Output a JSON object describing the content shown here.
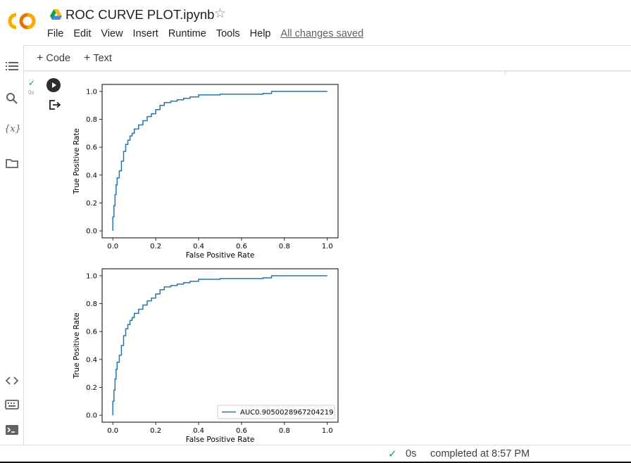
{
  "header": {
    "title": "ROC CURVE PLOT.ipynb",
    "menu": [
      "File",
      "Edit",
      "View",
      "Insert",
      "Runtime",
      "Tools",
      "Help"
    ],
    "save_status": "All changes saved",
    "logo_text": "CO"
  },
  "toolbar": {
    "code_label": "Code",
    "text_label": "Text"
  },
  "sidebar": {
    "icons": [
      "table-of-contents-icon",
      "search-icon",
      "variables-icon",
      "files-icon",
      "code-snippets-icon",
      "command-palette-icon",
      "terminal-icon"
    ],
    "variables_glyph": "{x}"
  },
  "cell": {
    "exec_time": "0s"
  },
  "status": {
    "duration": "0s",
    "message": "completed at 8:57 PM"
  },
  "colors": {
    "curve": "#1f77b4",
    "check": "#0f9d58",
    "logo_orange": "#f9ab00",
    "logo_dark": "#e37400"
  },
  "chart_data": [
    {
      "type": "line",
      "xlabel": "False Positive Rate",
      "ylabel": "True Positive Rate",
      "xlim": [
        -0.05,
        1.05
      ],
      "ylim": [
        -0.05,
        1.05
      ],
      "x_ticks": [
        "0.0",
        "0.2",
        "0.4",
        "0.6",
        "0.8",
        "1.0"
      ],
      "y_ticks": [
        "0.0",
        "0.2",
        "0.4",
        "0.6",
        "0.8",
        "1.0"
      ],
      "series": [
        {
          "x": [
            0.0,
            0.0,
            0.005,
            0.005,
            0.01,
            0.01,
            0.015,
            0.015,
            0.02,
            0.02,
            0.03,
            0.03,
            0.04,
            0.04,
            0.05,
            0.05,
            0.06,
            0.06,
            0.07,
            0.07,
            0.08,
            0.08,
            0.09,
            0.09,
            0.1,
            0.1,
            0.12,
            0.12,
            0.14,
            0.14,
            0.16,
            0.16,
            0.18,
            0.18,
            0.2,
            0.2,
            0.22,
            0.22,
            0.24,
            0.24,
            0.27,
            0.27,
            0.3,
            0.3,
            0.33,
            0.33,
            0.36,
            0.36,
            0.4,
            0.4,
            0.5,
            0.5,
            0.7,
            0.7,
            0.74,
            0.74,
            1.0
          ],
          "y": [
            0.0,
            0.1,
            0.1,
            0.18,
            0.18,
            0.26,
            0.26,
            0.33,
            0.33,
            0.38,
            0.38,
            0.43,
            0.43,
            0.5,
            0.5,
            0.57,
            0.57,
            0.62,
            0.62,
            0.65,
            0.65,
            0.68,
            0.68,
            0.7,
            0.7,
            0.73,
            0.73,
            0.76,
            0.76,
            0.79,
            0.79,
            0.82,
            0.82,
            0.84,
            0.84,
            0.87,
            0.87,
            0.9,
            0.9,
            0.92,
            0.92,
            0.93,
            0.93,
            0.94,
            0.94,
            0.95,
            0.95,
            0.96,
            0.96,
            0.975,
            0.975,
            0.98,
            0.98,
            0.985,
            0.985,
            1.0,
            1.0
          ]
        }
      ]
    },
    {
      "type": "line",
      "xlabel": "False Positive Rate",
      "ylabel": "True Positive Rate",
      "xlim": [
        -0.05,
        1.05
      ],
      "ylim": [
        -0.05,
        1.05
      ],
      "x_ticks": [
        "0.0",
        "0.2",
        "0.4",
        "0.6",
        "0.8",
        "1.0"
      ],
      "y_ticks": [
        "0.0",
        "0.2",
        "0.4",
        "0.6",
        "0.8",
        "1.0"
      ],
      "legend": "bottom-right",
      "series": [
        {
          "name": "AUC0.9050028967204219",
          "x": [
            0.0,
            0.0,
            0.005,
            0.005,
            0.01,
            0.01,
            0.015,
            0.015,
            0.02,
            0.02,
            0.03,
            0.03,
            0.04,
            0.04,
            0.05,
            0.05,
            0.06,
            0.06,
            0.07,
            0.07,
            0.08,
            0.08,
            0.09,
            0.09,
            0.1,
            0.1,
            0.12,
            0.12,
            0.14,
            0.14,
            0.16,
            0.16,
            0.18,
            0.18,
            0.2,
            0.2,
            0.22,
            0.22,
            0.24,
            0.24,
            0.27,
            0.27,
            0.3,
            0.3,
            0.33,
            0.33,
            0.36,
            0.36,
            0.4,
            0.4,
            0.5,
            0.5,
            0.7,
            0.7,
            0.74,
            0.74,
            1.0
          ],
          "y": [
            0.0,
            0.1,
            0.1,
            0.18,
            0.18,
            0.26,
            0.26,
            0.33,
            0.33,
            0.38,
            0.38,
            0.43,
            0.43,
            0.5,
            0.5,
            0.57,
            0.57,
            0.62,
            0.62,
            0.65,
            0.65,
            0.68,
            0.68,
            0.7,
            0.7,
            0.73,
            0.73,
            0.76,
            0.76,
            0.79,
            0.79,
            0.82,
            0.82,
            0.84,
            0.84,
            0.87,
            0.87,
            0.9,
            0.9,
            0.92,
            0.92,
            0.93,
            0.93,
            0.94,
            0.94,
            0.95,
            0.95,
            0.96,
            0.96,
            0.975,
            0.975,
            0.98,
            0.98,
            0.985,
            0.985,
            1.0,
            1.0
          ]
        }
      ]
    }
  ]
}
